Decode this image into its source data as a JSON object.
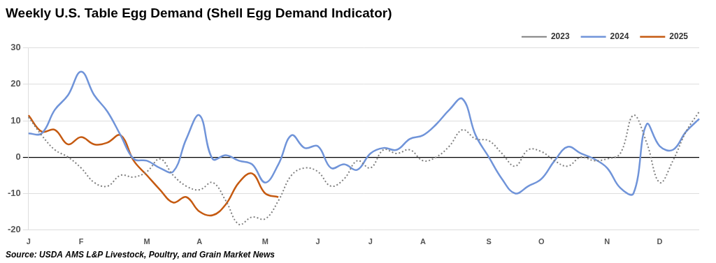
{
  "chart_data": {
    "type": "line",
    "title": "Weekly U.S. Table Egg Demand (Shell Egg Demand Indicator)",
    "source": "Source: USDA AMS L&P Livestock, Poultry, and Grain Market News",
    "categories": [
      "J",
      null,
      null,
      null,
      "F",
      null,
      null,
      null,
      null,
      "M",
      null,
      null,
      null,
      "A",
      null,
      null,
      null,
      null,
      "M",
      null,
      null,
      null,
      "J",
      null,
      null,
      null,
      "J",
      null,
      null,
      null,
      "A",
      null,
      null,
      null,
      null,
      "S",
      null,
      null,
      null,
      "O",
      null,
      null,
      null,
      null,
      "N",
      null,
      null,
      null,
      "D",
      null,
      null,
      null
    ],
    "series": [
      {
        "name": "2023",
        "color": "#7f7f7f",
        "line_style": "dotted",
        "values": [
          11,
          6,
          2,
          0,
          -3,
          -7,
          -8,
          -5,
          -5.5,
          -4,
          -0.5,
          -5,
          -8,
          -9,
          -7,
          -12,
          -18.5,
          -16.5,
          -17,
          -12,
          -5,
          -3,
          -4,
          -8,
          -6,
          -1,
          -3,
          2,
          1,
          2,
          -1,
          0,
          3,
          7.5,
          5,
          4.5,
          1,
          -2.5,
          2,
          1.5,
          -1,
          -2.5,
          0,
          -1,
          -0.5,
          1,
          11.5,
          4,
          -7,
          -1,
          7,
          12.5
        ]
      },
      {
        "name": "2024",
        "color": "#7094d9",
        "line_style": "solid",
        "values": [
          6.5,
          6.5,
          13,
          17,
          23.5,
          17,
          12.5,
          6,
          -0.5,
          -1,
          -3,
          -4,
          5,
          11.5,
          -0.5,
          0.5,
          -1,
          -2,
          -7,
          -2,
          6,
          2.5,
          3,
          -3,
          -2,
          -3.5,
          1,
          2.5,
          2,
          5,
          6,
          9,
          13,
          16,
          6,
          0,
          -6,
          -10,
          -8,
          -6,
          -1,
          2.8,
          1,
          -0.5,
          -3,
          -8.5,
          -10,
          9,
          3,
          2,
          7,
          10.5
        ]
      },
      {
        "name": "2025",
        "color": "#c55a11",
        "line_style": "solid",
        "values": [
          11.5,
          7,
          7.5,
          3.5,
          5.5,
          3.5,
          4,
          6,
          -1,
          -5,
          -9,
          -12.5,
          -11,
          -15,
          -16,
          -13,
          -7,
          -4.5,
          -10,
          -11,
          null,
          null,
          null,
          null,
          null,
          null,
          null,
          null,
          null,
          null,
          null,
          null,
          null,
          null,
          null,
          null,
          null,
          null,
          null,
          null,
          null,
          null,
          null,
          null,
          null,
          null,
          null,
          null,
          null,
          null,
          null,
          null
        ]
      }
    ],
    "ylim": [
      -20,
      30
    ],
    "yticks": [
      -20,
      -10,
      0,
      10,
      20,
      30
    ],
    "grid": true,
    "legend": "top-right"
  }
}
